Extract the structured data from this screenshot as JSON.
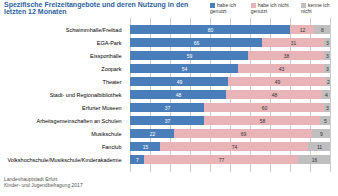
{
  "chart_data": {
    "type": "bar",
    "orientation": "horizontal",
    "stacked": true,
    "data_labels": true,
    "grid": true,
    "tick_labels": "y",
    "legend": "top right",
    "title": "Spezifische Freizeitangebote und deren Nutzung in den letzten 12 Monaten",
    "source": [
      "Landeshauptstadt Erfurt",
      "Kinder- und Jugendbefragung 2017"
    ],
    "categories": [
      "Schwimmhalle/Freibad",
      "EGA-Park",
      "Eissporthalle",
      "Zoopark",
      "Theater",
      "Stadt- und Regionalbibliothek",
      "Erfurter Museen",
      "Arbeitsgemeinschaften an Schulen",
      "Musikschule",
      "Fanclub",
      "Volkshochschule/Musikschule/Kinderakademie"
    ],
    "xlim": [
      0,
      100
    ],
    "xticks": [
      0,
      10,
      20,
      30,
      40,
      50,
      60,
      70,
      80,
      90,
      100
    ],
    "series": [
      {
        "name": "habe ich genutzt",
        "color": "#4a7ebb",
        "values": [
          80,
          66,
          59,
          54,
          49,
          48,
          37,
          37,
          22,
          15,
          7
        ]
      },
      {
        "name": "habe ich nicht genutzt",
        "color": "#e8b4b8",
        "values": [
          12,
          31,
          38,
          43,
          49,
          48,
          60,
          58,
          69,
          74,
          77
        ]
      },
      {
        "name": "kenne ich nicht",
        "color": "#bfbfbf",
        "values": [
          8,
          3,
          3,
          3,
          2,
          4,
          3,
          5,
          9,
          11,
          16
        ]
      }
    ]
  }
}
